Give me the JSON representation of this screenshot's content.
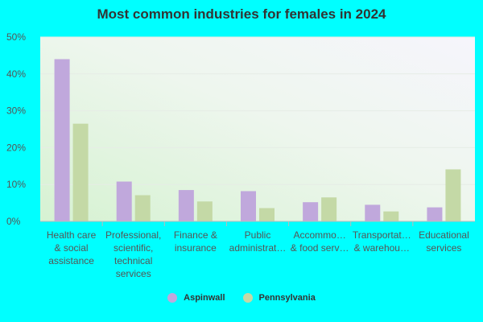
{
  "chart_data": {
    "type": "bar",
    "title": "Most common industries for females in 2024",
    "categories": [
      [
        "Health care",
        "& social",
        "assistance"
      ],
      [
        "Professional,",
        "scientific,",
        "technical",
        "services"
      ],
      [
        "Finance &",
        "insurance"
      ],
      [
        "Public",
        "administrat…"
      ],
      [
        "Accommo…",
        "& food serv…"
      ],
      [
        "Transportat…",
        "& warehou…"
      ],
      [
        "Educational",
        "services"
      ]
    ],
    "series": [
      {
        "name": "Aspinwall",
        "color": "#c0a8dc",
        "values": [
          44,
          10.8,
          8.5,
          8.2,
          5.2,
          4.5,
          3.8
        ]
      },
      {
        "name": "Pennsylvania",
        "color": "#c4d9a6",
        "values": [
          26.5,
          7.1,
          5.4,
          3.6,
          6.5,
          2.7,
          14.1
        ]
      }
    ],
    "ylim": [
      0,
      50
    ],
    "yticks": [
      0,
      10,
      20,
      30,
      40,
      50
    ],
    "ytick_labels": [
      "0%",
      "10%",
      "20%",
      "30%",
      "40%",
      "50%"
    ],
    "legend_position": "bottom",
    "grid": true
  }
}
